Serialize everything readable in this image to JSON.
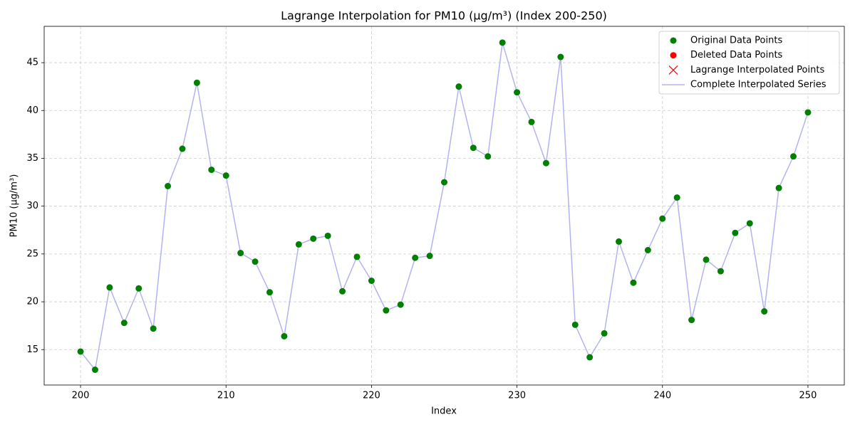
{
  "chart_data": {
    "type": "line",
    "title": "Lagrange Interpolation for PM10 (μg/m³) (Index 200-250)",
    "x_label": "Index",
    "y_label": "PM10 (μg/m³)",
    "xlim": [
      197.5,
      252.5
    ],
    "xticks": [
      200,
      210,
      220,
      230,
      240,
      250
    ],
    "ylim": [
      11.3,
      48.8
    ],
    "yticks": [
      15,
      20,
      25,
      30,
      35,
      40,
      45
    ],
    "grid": true,
    "legend": "upper right",
    "series": [
      {
        "name": "Original Data Points",
        "color": "#008000",
        "marker": "o",
        "x": [
          200,
          201,
          202,
          203,
          204,
          205,
          206,
          207,
          208,
          209,
          210,
          211,
          212,
          213,
          214,
          215,
          216,
          217,
          218,
          219,
          220,
          221,
          222,
          223,
          224,
          225,
          226,
          227,
          228,
          229,
          230,
          231,
          232,
          233,
          234,
          235,
          236,
          237,
          238,
          239,
          240,
          241,
          242,
          243,
          244,
          245,
          246,
          247,
          248,
          249,
          250
        ],
        "values": [
          14.8,
          12.9,
          21.5,
          17.8,
          21.4,
          17.2,
          32.1,
          36.0,
          42.9,
          33.8,
          33.2,
          25.1,
          24.2,
          21.0,
          16.4,
          26.0,
          26.6,
          26.9,
          21.1,
          24.7,
          22.2,
          19.1,
          19.7,
          24.6,
          24.8,
          32.5,
          42.5,
          36.1,
          35.2,
          47.1,
          41.9,
          38.8,
          34.5,
          45.6,
          17.6,
          14.2,
          16.7,
          26.3,
          22.0,
          25.4,
          28.7,
          30.9,
          18.1,
          24.4,
          23.2,
          27.2,
          28.2,
          19.0,
          31.9,
          35.2,
          39.8
        ]
      },
      {
        "name": "Deleted Data Points",
        "color": "#ff0000",
        "marker": "o",
        "x": [],
        "values": []
      },
      {
        "name": "Lagrange Interpolated Points",
        "color": "#ff0000",
        "marker": "x",
        "x": [],
        "values": []
      },
      {
        "name": "Complete Interpolated Series",
        "color": "#b3b3f2",
        "marker": "line",
        "x": [
          200,
          201,
          202,
          203,
          204,
          205,
          206,
          207,
          208,
          209,
          210,
          211,
          212,
          213,
          214,
          215,
          216,
          217,
          218,
          219,
          220,
          221,
          222,
          223,
          224,
          225,
          226,
          227,
          228,
          229,
          230,
          231,
          232,
          233,
          234,
          235,
          236,
          237,
          238,
          239,
          240,
          241,
          242,
          243,
          244,
          245,
          246,
          247,
          248,
          249,
          250
        ],
        "values": [
          14.8,
          12.9,
          21.5,
          17.8,
          21.4,
          17.2,
          32.1,
          36.0,
          42.9,
          33.8,
          33.2,
          25.1,
          24.2,
          21.0,
          16.4,
          26.0,
          26.6,
          26.9,
          21.1,
          24.7,
          22.2,
          19.1,
          19.7,
          24.6,
          24.8,
          32.5,
          42.5,
          36.1,
          35.2,
          47.1,
          41.9,
          38.8,
          34.5,
          45.6,
          17.6,
          14.2,
          16.7,
          26.3,
          22.0,
          25.4,
          28.7,
          30.9,
          18.1,
          24.4,
          23.2,
          27.2,
          28.2,
          19.0,
          31.9,
          35.2,
          39.8
        ]
      }
    ]
  }
}
